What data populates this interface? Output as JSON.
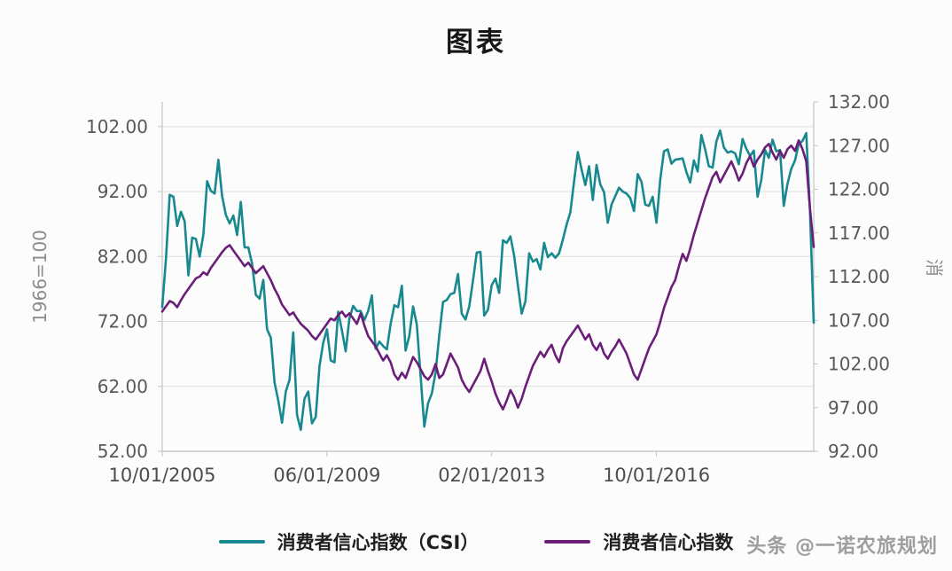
{
  "title": "图表",
  "watermark": {
    "text": "头条 @一诺农旅规划"
  },
  "chart_data": {
    "type": "line",
    "title": "图表",
    "x_unit": "month",
    "x_start": "10/01/2005",
    "x_ticks": [
      {
        "index": 0,
        "label": "10/01/2005"
      },
      {
        "index": 44,
        "label": "06/01/2009"
      },
      {
        "index": 88,
        "label": "02/01/2013"
      },
      {
        "index": 132,
        "label": "10/01/2016"
      }
    ],
    "left_axis": {
      "label": "1966=100",
      "min": 52,
      "max": 102,
      "ticks": [
        52,
        62,
        72,
        82,
        92,
        102
      ]
    },
    "right_axis": {
      "label": "消",
      "min": 92,
      "max": 132,
      "ticks": [
        92,
        97,
        102,
        107,
        112,
        117,
        122,
        127,
        132
      ]
    },
    "grid": "horizontal",
    "legend_position": "bottom",
    "series": [
      {
        "name": "消费者信心指数（CSI）",
        "axis": "left",
        "color": "#17898f",
        "values": [
          74.2,
          81.6,
          91.5,
          91.2,
          86.7,
          88.9,
          87.4,
          79.1,
          84.9,
          84.7,
          82.0,
          85.4,
          93.6,
          92.1,
          91.7,
          96.9,
          91.3,
          88.4,
          87.1,
          88.3,
          85.3,
          90.4,
          83.4,
          83.4,
          80.9,
          76.1,
          75.5,
          78.4,
          70.8,
          69.5,
          62.6,
          59.8,
          56.4,
          61.2,
          63.0,
          70.3,
          57.6,
          55.3,
          60.1,
          61.2,
          56.3,
          57.3,
          65.1,
          68.7,
          70.8,
          66.0,
          65.7,
          73.5,
          70.6,
          67.4,
          72.5,
          74.4,
          73.6,
          73.6,
          72.2,
          73.6,
          76.0,
          67.8,
          68.9,
          68.2,
          67.7,
          71.6,
          74.5,
          74.2,
          77.5,
          67.5,
          69.8,
          74.3,
          71.5,
          63.7,
          55.8,
          59.4,
          60.9,
          64.1,
          69.9,
          75.0,
          75.3,
          76.2,
          76.4,
          79.3,
          73.2,
          72.3,
          74.3,
          78.3,
          82.6,
          82.7,
          72.9,
          73.8,
          77.6,
          78.6,
          76.4,
          84.5,
          84.1,
          85.1,
          82.1,
          77.5,
          73.2,
          75.1,
          82.5,
          81.2,
          81.6,
          80.0,
          84.1,
          81.9,
          82.5,
          81.8,
          82.5,
          84.6,
          86.9,
          88.8,
          93.6,
          98.1,
          95.4,
          93.0,
          95.9,
          90.7,
          96.1,
          93.1,
          91.9,
          87.2,
          90.0,
          91.3,
          92.6,
          92.0,
          91.7,
          91.0,
          89.0,
          94.7,
          93.5,
          90.0,
          89.8,
          91.2,
          87.2,
          93.8,
          98.2,
          98.5,
          96.3,
          96.9,
          97.0,
          97.1,
          95.0,
          93.4,
          96.8,
          95.1,
          100.7,
          98.5,
          95.9,
          95.7,
          99.7,
          101.4,
          98.8,
          98.0,
          98.2,
          97.9,
          96.2,
          100.1,
          98.6,
          97.5,
          98.3,
          91.2,
          93.8,
          98.4,
          97.2,
          100.0,
          98.2,
          98.4,
          89.8,
          93.2,
          95.5,
          96.8,
          99.3,
          99.8,
          101.0,
          89.1,
          71.8
        ]
      },
      {
        "name": "消费者信心指数",
        "axis": "right",
        "color": "#6b1e79",
        "values": [
          108.0,
          108.6,
          109.2,
          109.0,
          108.5,
          109.3,
          110.0,
          110.6,
          111.2,
          111.8,
          112.0,
          112.5,
          112.2,
          113.0,
          113.6,
          114.2,
          114.8,
          115.3,
          115.6,
          115.0,
          114.4,
          113.8,
          113.2,
          113.6,
          113.0,
          112.4,
          112.8,
          113.2,
          112.4,
          111.6,
          110.6,
          109.8,
          108.8,
          108.2,
          107.6,
          107.9,
          107.2,
          106.6,
          106.2,
          105.8,
          105.2,
          104.8,
          105.4,
          106.0,
          106.6,
          107.2,
          107.0,
          107.6,
          108.0,
          107.4,
          107.8,
          107.2,
          106.6,
          107.8,
          106.4,
          105.2,
          104.6,
          104.0,
          103.2,
          102.4,
          103.0,
          102.2,
          100.8,
          100.2,
          101.0,
          100.4,
          101.6,
          102.8,
          102.2,
          101.4,
          100.6,
          100.2,
          100.8,
          102.0,
          100.4,
          100.8,
          102.0,
          103.2,
          102.4,
          101.6,
          100.2,
          99.4,
          98.8,
          99.6,
          100.4,
          101.2,
          102.6,
          101.2,
          100.0,
          98.6,
          97.6,
          96.8,
          97.8,
          99.0,
          98.2,
          97.0,
          98.0,
          99.4,
          100.6,
          101.8,
          102.6,
          103.4,
          102.8,
          103.6,
          104.2,
          103.0,
          102.2,
          103.8,
          104.6,
          105.2,
          105.8,
          106.4,
          105.6,
          104.8,
          105.4,
          104.2,
          103.6,
          104.4,
          103.2,
          102.6,
          103.4,
          104.0,
          104.8,
          104.0,
          103.2,
          102.0,
          100.8,
          100.2,
          101.4,
          102.6,
          103.8,
          104.6,
          105.4,
          106.8,
          108.4,
          109.6,
          110.8,
          111.6,
          113.2,
          114.6,
          113.8,
          115.2,
          116.8,
          118.2,
          119.6,
          121.0,
          122.2,
          123.4,
          124.0,
          122.8,
          123.6,
          124.4,
          125.2,
          124.2,
          123.0,
          123.8,
          125.0,
          125.8,
          124.6,
          125.4,
          126.0,
          126.8,
          127.2,
          126.2,
          125.4,
          126.4,
          125.6,
          126.6,
          127.0,
          126.4,
          127.6,
          126.6,
          125.2,
          119.8,
          115.4
        ]
      }
    ]
  }
}
